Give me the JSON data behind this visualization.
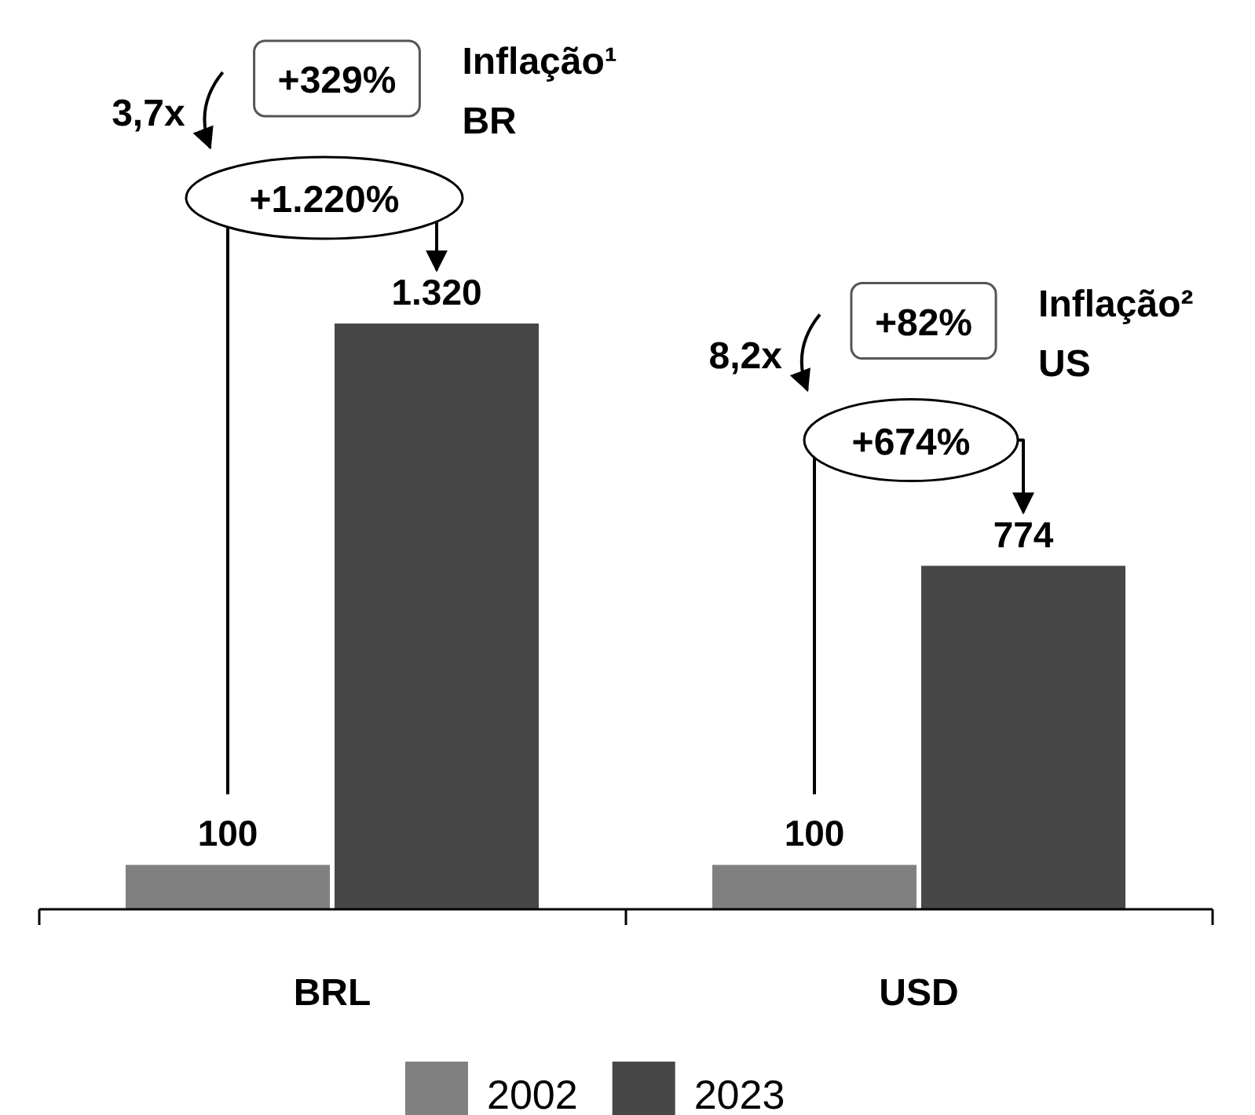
{
  "chart_data": {
    "type": "bar",
    "categories": [
      "BRL",
      "USD"
    ],
    "series": [
      {
        "name": "2002",
        "color": "#808080",
        "values": [
          100,
          100
        ],
        "value_labels": [
          "100",
          "100"
        ]
      },
      {
        "name": "2023",
        "color": "#474747",
        "values": [
          1320,
          774
        ],
        "value_labels": [
          "1.320",
          "774"
        ]
      }
    ],
    "annotations": [
      "+329%",
      "Inflação¹",
      "BR",
      "3,7x",
      "+1.220%",
      "+82%",
      "Inflação²",
      "US",
      "8,2x",
      "+674%"
    ],
    "legend": "bottom",
    "grid": false
  }
}
